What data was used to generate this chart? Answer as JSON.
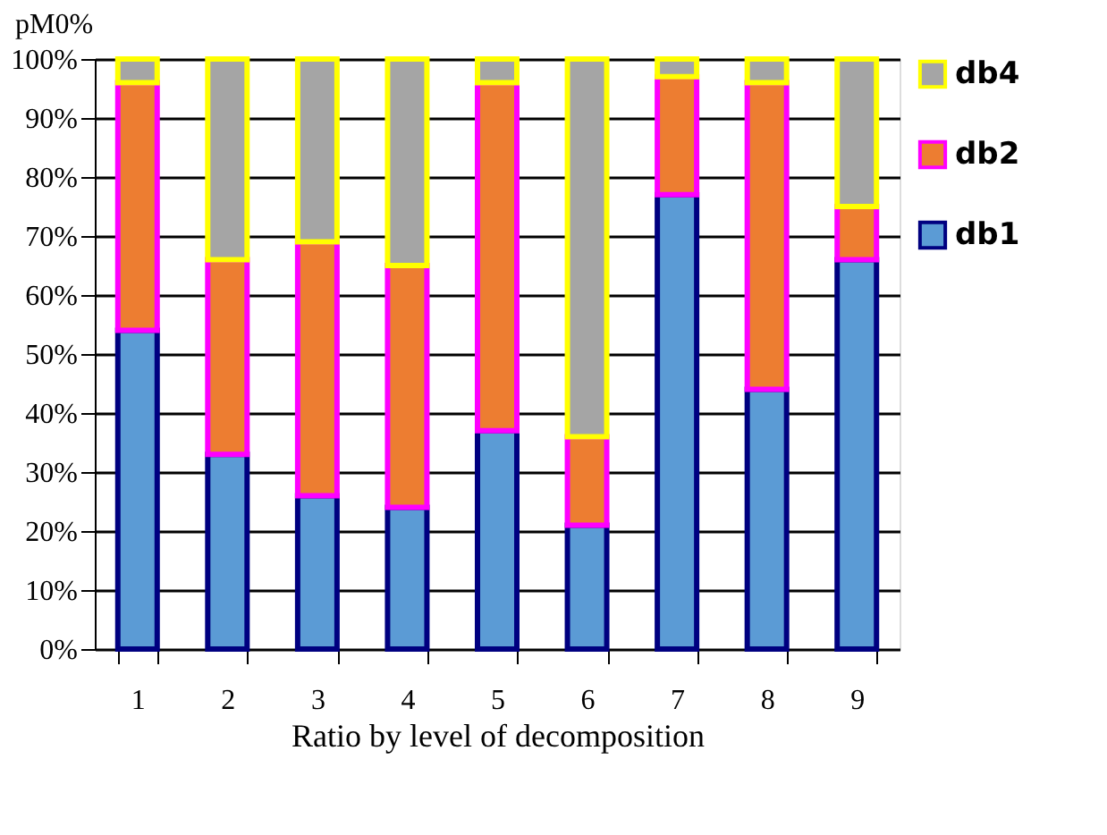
{
  "chart_data": {
    "type": "bar",
    "stacked": true,
    "ylabel": "pM0%",
    "xlabel": "Ratio by level of decomposition",
    "categories": [
      "1",
      "2",
      "3",
      "4",
      "5",
      "6",
      "7",
      "8",
      "9"
    ],
    "series": [
      {
        "name": "db1",
        "color": "#5b9bd5",
        "values": [
          54,
          33,
          26,
          24,
          37,
          21,
          77,
          44,
          66
        ]
      },
      {
        "name": "db2",
        "color": "#ed7d31",
        "values": [
          42,
          33,
          43,
          41,
          59,
          15,
          20,
          52,
          9
        ]
      },
      {
        "name": "db4",
        "color": "#a5a5a5",
        "values": [
          4,
          34,
          31,
          35,
          4,
          64,
          3,
          4,
          25
        ]
      }
    ],
    "ylim": [
      0,
      100
    ],
    "yticks": [
      {
        "value": 0,
        "label": "0%"
      },
      {
        "value": 10,
        "label": "10%"
      },
      {
        "value": 20,
        "label": "20%"
      },
      {
        "value": 30,
        "label": "30%"
      },
      {
        "value": 40,
        "label": "40%"
      },
      {
        "value": 50,
        "label": "50%"
      },
      {
        "value": 60,
        "label": "60%"
      },
      {
        "value": 70,
        "label": "70%"
      },
      {
        "value": 80,
        "label": "80%"
      },
      {
        "value": 90,
        "label": "90%"
      },
      {
        "value": 100,
        "label": "100%"
      }
    ],
    "grid": "y",
    "legend": "top right"
  }
}
